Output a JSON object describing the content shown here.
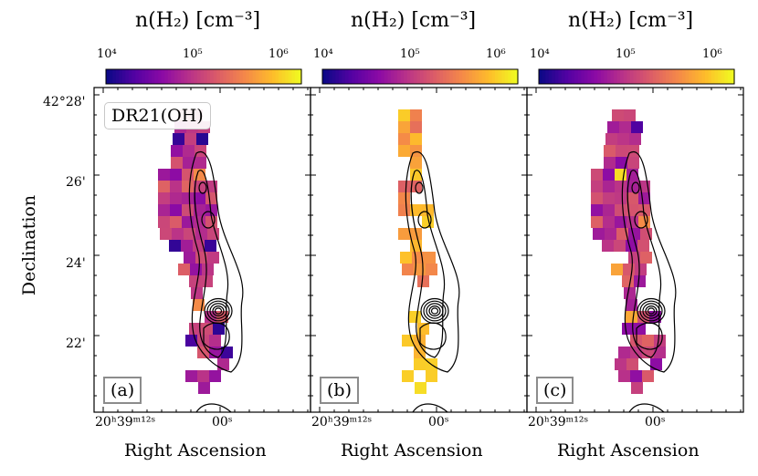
{
  "figure": {
    "colorbar_label": "n(H₂) [cm⁻³]",
    "colorbar_ticks": [
      "10⁴",
      "10⁵",
      "10⁶"
    ],
    "region_label": "DR21(OH)",
    "y_axis_label": "Declination",
    "x_axis_label": "Right Ascension",
    "y_ticks": [
      "42°28'",
      "26'",
      "24'",
      "22'"
    ],
    "x_ticks": [
      "20ʰ39ᵐ¹²ˢ",
      "00ˢ"
    ]
  },
  "panels": [
    {
      "tag": "(a)",
      "x_ticks": [
        "20ʰ39ᵐ¹²ˢ",
        "00ˢ"
      ]
    },
    {
      "tag": "(b)",
      "x_ticks": [
        "20ʰ39ᵐ¹²ˢ",
        "00ˢ"
      ]
    },
    {
      "tag": "(c)",
      "x_ticks": [
        "20ʰ39ᵐ¹²ˢ",
        "00ˢ"
      ]
    }
  ],
  "chart_data": {
    "type": "heatmap",
    "title": "n(H₂) [cm⁻³] maps of DR21(OH)",
    "xlabel": "Right Ascension",
    "ylabel": "Declination",
    "colorscale": "plasma",
    "color_range_log10": [
      4,
      6.3
    ],
    "y_range_arcmin": [
      20.5,
      28.2
    ],
    "panels": [
      "(a)",
      "(b)",
      "(c)"
    ]
  }
}
